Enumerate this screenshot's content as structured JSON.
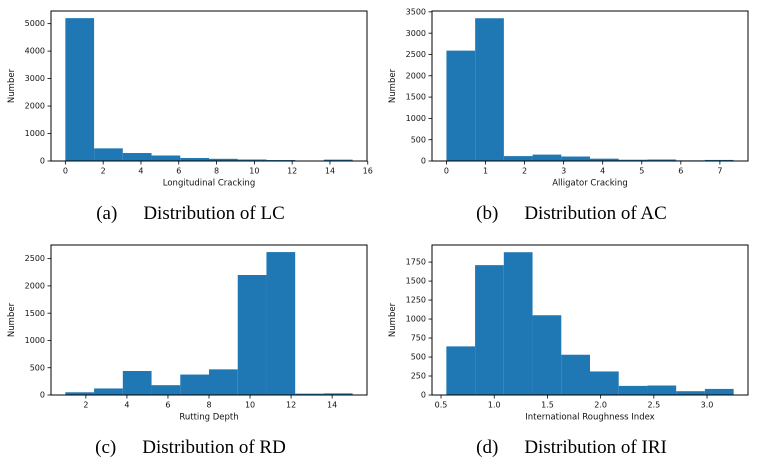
{
  "bar_color": "#1f77b4",
  "text_color": "#111111",
  "figures": [
    {
      "caption_index": "(a)",
      "caption_text": "Distribution of LC"
    },
    {
      "caption_index": "(b)",
      "caption_text": "Distribution of AC"
    },
    {
      "caption_index": "(c)",
      "caption_text": "Distribution of RD"
    },
    {
      "caption_index": "(d)",
      "caption_text": "Distribution of IRI"
    }
  ],
  "chart_data": [
    {
      "type": "bar",
      "subtype": "histogram",
      "title": "Distribution of LC",
      "xlabel": "Longitudinal Cracking",
      "ylabel": "Number",
      "bin_edges": [
        0,
        1.52,
        3.04,
        4.56,
        6.08,
        7.6,
        9.12,
        10.64,
        12.16,
        13.68,
        15.2
      ],
      "values": [
        5200,
        460,
        290,
        200,
        110,
        80,
        55,
        35,
        10,
        50
      ],
      "xlim": [
        -0.76,
        15.96
      ],
      "ylim": [
        0,
        5460
      ],
      "xtick_values": [
        0,
        2,
        4,
        6,
        8,
        10,
        12,
        14,
        16
      ],
      "xtick_labels": [
        "0",
        "2",
        "4",
        "6",
        "8",
        "10",
        "12",
        "14",
        "16"
      ],
      "ytick_values": [
        0,
        1000,
        2000,
        3000,
        4000,
        5000
      ],
      "ytick_labels": [
        "0",
        "1000",
        "2000",
        "3000",
        "4000",
        "5000"
      ],
      "grid": false,
      "legend": false
    },
    {
      "type": "bar",
      "subtype": "histogram",
      "title": "Distribution of AC",
      "xlabel": "Alligator Cracking",
      "ylabel": "Number",
      "bin_edges": [
        0,
        0.735,
        1.47,
        2.205,
        2.94,
        3.675,
        4.41,
        5.145,
        5.88,
        6.615,
        7.35
      ],
      "values": [
        2590,
        3350,
        115,
        150,
        105,
        55,
        30,
        35,
        15,
        25
      ],
      "xlim": [
        -0.37,
        7.72
      ],
      "ylim": [
        0,
        3520
      ],
      "xtick_values": [
        0,
        1,
        2,
        3,
        4,
        5,
        6,
        7
      ],
      "xtick_labels": [
        "0",
        "1",
        "2",
        "3",
        "4",
        "5",
        "6",
        "7"
      ],
      "ytick_values": [
        0,
        500,
        1000,
        1500,
        2000,
        2500,
        3000,
        3500
      ],
      "ytick_labels": [
        "0",
        "500",
        "1000",
        "1500",
        "2000",
        "2500",
        "3000",
        "3500"
      ],
      "grid": false,
      "legend": false
    },
    {
      "type": "bar",
      "subtype": "histogram",
      "title": "Distribution of RD",
      "xlabel": "Rutting Depth",
      "ylabel": "Number",
      "bin_edges": [
        1,
        2.4,
        3.8,
        5.2,
        6.6,
        8,
        9.4,
        10.8,
        12.2,
        13.6,
        15
      ],
      "values": [
        50,
        120,
        440,
        180,
        375,
        470,
        2200,
        2620,
        25,
        30
      ],
      "xlim": [
        0.3,
        15.7
      ],
      "ylim": [
        0,
        2750
      ],
      "xtick_values": [
        2,
        4,
        6,
        8,
        10,
        12,
        14
      ],
      "xtick_labels": [
        "2",
        "4",
        "6",
        "8",
        "10",
        "12",
        "14"
      ],
      "ytick_values": [
        0,
        500,
        1000,
        1500,
        2000,
        2500
      ],
      "ytick_labels": [
        "0",
        "500",
        "1000",
        "1500",
        "2000",
        "2500"
      ],
      "grid": false,
      "legend": false
    },
    {
      "type": "bar",
      "subtype": "histogram",
      "title": "Distribution of IRI",
      "xlabel": "International Roughness Index",
      "ylabel": "Number",
      "bin_edges": [
        0.55,
        0.82,
        1.09,
        1.36,
        1.63,
        1.9,
        2.17,
        2.44,
        2.71,
        2.98,
        3.25
      ],
      "values": [
        640,
        1710,
        1880,
        1050,
        530,
        310,
        120,
        125,
        50,
        80
      ],
      "xlim": [
        0.415,
        3.385
      ],
      "ylim": [
        0,
        1975
      ],
      "xtick_values": [
        0.5,
        1.0,
        1.5,
        2.0,
        2.5,
        3.0
      ],
      "xtick_labels": [
        "0.5",
        "1.0",
        "1.5",
        "2.0",
        "2.5",
        "3.0"
      ],
      "ytick_values": [
        0,
        250,
        500,
        750,
        1000,
        1250,
        1500,
        1750
      ],
      "ytick_labels": [
        "0",
        "250",
        "500",
        "750",
        "1000",
        "1250",
        "1500",
        "1750"
      ],
      "grid": false,
      "legend": false
    }
  ]
}
